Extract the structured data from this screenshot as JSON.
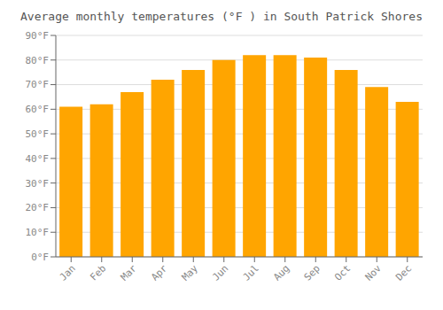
{
  "chart_data": {
    "type": "bar",
    "title": "Average monthly temperatures (°F ) in South Patrick Shores",
    "categories": [
      "Jan",
      "Feb",
      "Mar",
      "Apr",
      "May",
      "Jun",
      "Jul",
      "Aug",
      "Sep",
      "Oct",
      "Nov",
      "Dec"
    ],
    "values": [
      61,
      62,
      67,
      72,
      76,
      80,
      82,
      82,
      81,
      76,
      69,
      63
    ],
    "color": "#FFA500",
    "ylim": [
      0,
      90
    ],
    "yticks": [
      {
        "value": 0,
        "label": "0°F"
      },
      {
        "value": 10,
        "label": "10°F"
      },
      {
        "value": 20,
        "label": "20°F"
      },
      {
        "value": 30,
        "label": "30°F"
      },
      {
        "value": 40,
        "label": "40°F"
      },
      {
        "value": 50,
        "label": "50°F"
      },
      {
        "value": 60,
        "label": "60°F"
      },
      {
        "value": 70,
        "label": "70°F"
      },
      {
        "value": 80,
        "label": "80°F"
      },
      {
        "value": 90,
        "label": "90°F"
      }
    ],
    "grid": true
  }
}
